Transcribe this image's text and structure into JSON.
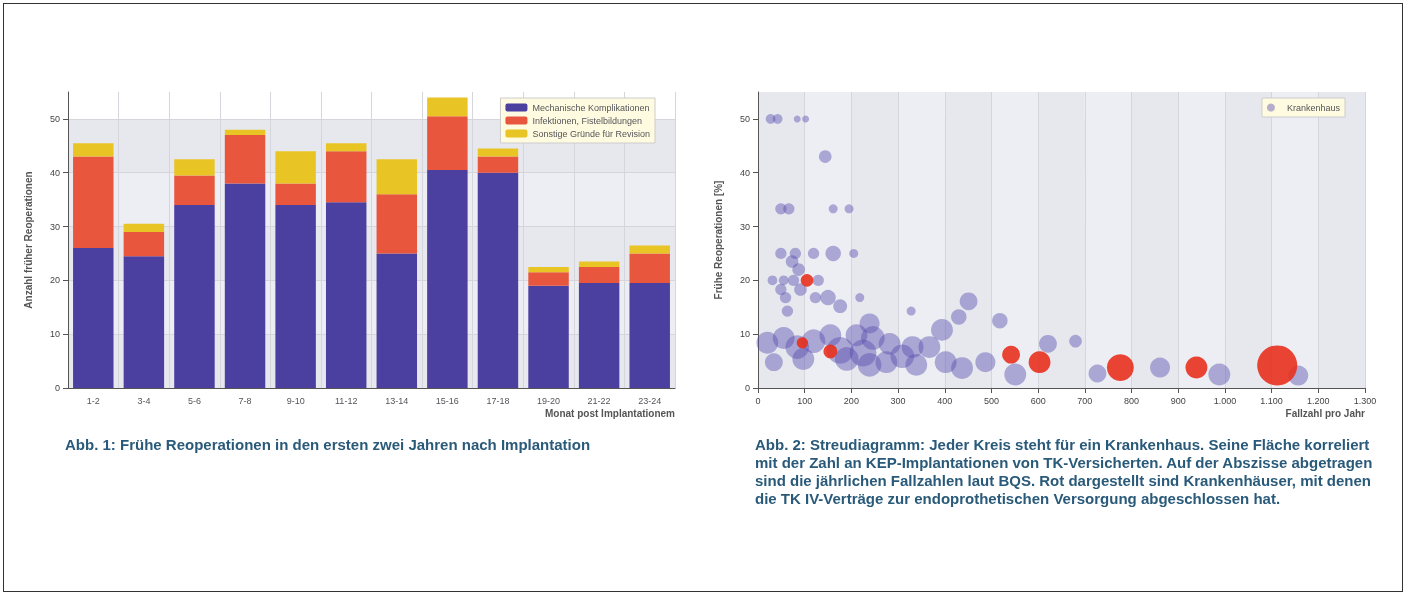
{
  "chart_data": [
    {
      "type": "bar",
      "stacked": true,
      "xlabel": "Monat post Implantationem",
      "ylabel": "Anzahl früher Reoperationen",
      "categories": [
        "1-2",
        "3-4",
        "5-6",
        "7-8",
        "9-10",
        "11-12",
        "13-14",
        "15-16",
        "17-18",
        "19-20",
        "21-22",
        "23-24"
      ],
      "series": [
        {
          "name": "Mechanische Komplikationen",
          "color": "#4b3fa0",
          "values": [
            26,
            24.5,
            34,
            38,
            34,
            34.5,
            25,
            40.5,
            40,
            19,
            19.5,
            19.5
          ]
        },
        {
          "name": "Infektionen, Fistelbildungen",
          "color": "#e8563e",
          "values": [
            17,
            4.5,
            5.5,
            9,
            4,
            9.5,
            11,
            10,
            3,
            2.5,
            3,
            5.5
          ]
        },
        {
          "name": "Sonstige Gründe für Revision",
          "color": "#e8c425",
          "values": [
            2.5,
            1.5,
            3,
            1,
            6,
            1.5,
            6.5,
            3.5,
            1.5,
            1,
            1,
            1.5
          ]
        }
      ],
      "ylim": [
        0,
        55
      ],
      "yticks": [
        0,
        10,
        20,
        30,
        40,
        50
      ],
      "grid": true,
      "legend": "top right",
      "annotations": [
        "Abb. 1: Frühe Reoperationen in den ersten zwei Jahren nach Implantation"
      ]
    },
    {
      "type": "bubble",
      "xlabel": "Fallzahl pro Jahr",
      "ylabel": "Frühe Reoperationen [%]",
      "xlim": [
        0,
        1300
      ],
      "xticks": [
        0,
        100,
        200,
        300,
        400,
        500,
        600,
        700,
        800,
        900,
        {
          "value": 1000,
          "label": "1.000"
        },
        {
          "value": 1100,
          "label": "1.100"
        },
        {
          "value": 1200,
          "label": "1.200"
        },
        {
          "value": 1300,
          "label": "1.300"
        }
      ],
      "ylim": [
        0,
        55
      ],
      "yticks": [
        0,
        10,
        20,
        30,
        40,
        50
      ],
      "grid": true,
      "legend": "top right",
      "series": [
        {
          "name": "Krankenhaus",
          "color": "#5a4fb0",
          "x": [
            27,
            42,
            84,
            102,
            144,
            49,
            66,
            161,
            195,
            49,
            80,
            119,
            161,
            205,
            73,
            87,
            31,
            55,
            76,
            129,
            49,
            91,
            59,
            123,
            150,
            218,
            176,
            63,
            328,
            451,
            430,
            518,
            239,
            20,
            55,
            119,
            155,
            211,
            246,
            282,
            331,
            394,
            367,
            34,
            97,
            190,
            239,
            275,
            339,
            402,
            437,
            487,
            551,
            621,
            84,
            176,
            225,
            309,
            680,
            727,
            861,
            988,
            1157
          ],
          "values": [
            50,
            50,
            50,
            50,
            43,
            33.3,
            33.3,
            33.3,
            33.3,
            25,
            25,
            25,
            25,
            25,
            23.5,
            22,
            20,
            20,
            20,
            20,
            18.3,
            18.3,
            16.8,
            16.8,
            16.8,
            16.8,
            15.2,
            14.3,
            14.3,
            16.1,
            13.2,
            12.5,
            12,
            8.4,
            9.3,
            8.7,
            9.8,
            9.8,
            9.3,
            8.2,
            7.6,
            10.8,
            7.6,
            4.8,
            5.4,
            5.4,
            4.3,
            4.8,
            4.3,
            4.8,
            3.7,
            4.8,
            2.5,
            8.2,
            7.6,
            7,
            6.5,
            5.9,
            8.7,
            2.7,
            3.8,
            2.5,
            2.3
          ],
          "sizes": [
            0.06,
            0.06,
            0.03,
            0.03,
            0.1,
            0.08,
            0.08,
            0.05,
            0.05,
            0.08,
            0.08,
            0.08,
            0.15,
            0.05,
            0.1,
            0.1,
            0.06,
            0.06,
            0.08,
            0.08,
            0.08,
            0.1,
            0.08,
            0.08,
            0.15,
            0.05,
            0.12,
            0.08,
            0.05,
            0.2,
            0.15,
            0.15,
            0.25,
            0.3,
            0.3,
            0.35,
            0.3,
            0.3,
            0.35,
            0.3,
            0.3,
            0.3,
            0.3,
            0.2,
            0.3,
            0.35,
            0.35,
            0.3,
            0.3,
            0.3,
            0.3,
            0.25,
            0.3,
            0.2,
            0.35,
            0.45,
            0.45,
            0.35,
            0.1,
            0.2,
            0.25,
            0.3,
            0.25
          ]
        },
        {
          "color": "#e8301e",
          "x": [
            105,
            95,
            155,
            542,
            603,
            776,
            939,
            1112
          ],
          "values": [
            20,
            8.4,
            6.8,
            6.2,
            4.8,
            3.8,
            3.8,
            4.2
          ],
          "sizes": [
            0.1,
            0.08,
            0.12,
            0.2,
            0.3,
            0.45,
            0.3,
            1
          ]
        }
      ],
      "annotations": [
        "Abb. 2: Streudiagramm: Jeder Kreis steht für ein Krankenhaus. Seine Fläche korreliert mit der Zahl an KEP-Implantationen von TK-Versicherten. Auf der Abszisse abgetragen sind die jährlichen Fallzahlen laut BQS. Rot dargestellt sind Krankenhäuser, mit denen die TK IV-Verträge zur endoprothetischen Versorgung abgeschlossen hat."
      ]
    }
  ]
}
